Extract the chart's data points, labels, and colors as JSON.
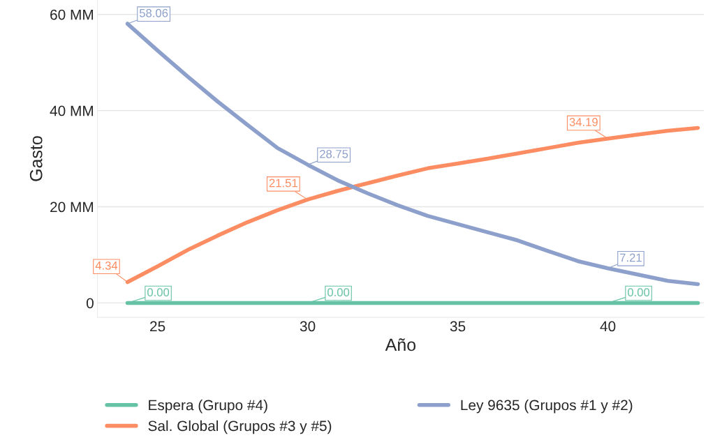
{
  "chart_data": {
    "type": "line",
    "xlabel": "Año",
    "ylabel": "Gasto",
    "x": [
      24,
      25,
      26,
      27,
      28,
      29,
      30,
      31,
      32,
      33,
      34,
      35,
      36,
      37,
      38,
      39,
      40,
      41,
      42,
      43
    ],
    "series": [
      {
        "name": "Espera (Grupo #4)",
        "color": "#66c2a5",
        "values": [
          0,
          0,
          0,
          0,
          0,
          0,
          0,
          0,
          0,
          0,
          0,
          0,
          0,
          0,
          0,
          0,
          0,
          0,
          0,
          0
        ],
        "value_labels": [
          "0.00",
          null,
          null,
          null,
          null,
          null,
          "0.00",
          null,
          null,
          null,
          null,
          null,
          null,
          null,
          null,
          null,
          "0.00",
          null,
          null,
          null
        ]
      },
      {
        "name": "Sal. Global (Grupos #3 y #5)",
        "color": "#fc8d62",
        "values": [
          4.34,
          7.6,
          11.0,
          14.0,
          16.8,
          19.3,
          21.51,
          23.3,
          24.9,
          26.5,
          28.0,
          29.0,
          30.0,
          31.1,
          32.2,
          33.3,
          34.19,
          35.0,
          35.8,
          36.4
        ],
        "value_labels": [
          "4.34",
          null,
          null,
          null,
          null,
          null,
          "21.51",
          null,
          null,
          null,
          null,
          null,
          null,
          null,
          null,
          null,
          "34.19",
          null,
          null,
          null
        ]
      },
      {
        "name": "Ley 9635 (Grupos #1 y #2)",
        "color": "#8da0cb",
        "values": [
          58.06,
          52.5,
          47.1,
          41.9,
          37.0,
          32.2,
          28.75,
          25.5,
          22.8,
          20.3,
          18.1,
          16.4,
          14.7,
          13.0,
          10.8,
          8.7,
          7.21,
          5.9,
          4.6,
          3.9
        ],
        "value_labels": [
          "58.06",
          null,
          null,
          null,
          null,
          null,
          "28.75",
          null,
          null,
          null,
          null,
          null,
          null,
          null,
          null,
          null,
          "7.21",
          null,
          null,
          null
        ]
      }
    ],
    "xlim": [
      23,
      43.2
    ],
    "ylim": [
      -3,
      63
    ],
    "xticks": [
      25,
      30,
      35,
      40
    ],
    "yticks": [
      {
        "value": 0,
        "label": "0"
      },
      {
        "value": 20,
        "label": "20 MM"
      },
      {
        "value": 40,
        "label": "40 MM"
      },
      {
        "value": 60,
        "label": "60 MM"
      }
    ],
    "grid": "y",
    "legend": "bottom",
    "marker": "none",
    "line_style": "solid"
  }
}
